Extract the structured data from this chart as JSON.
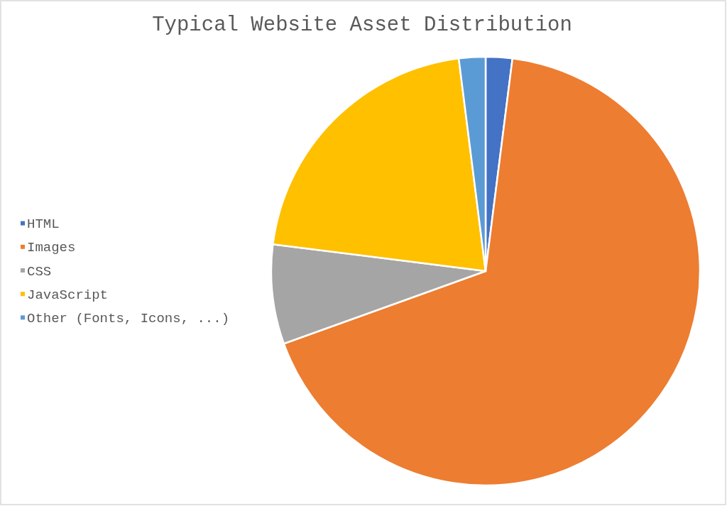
{
  "chart_data": {
    "type": "pie",
    "title": "Typical Website Asset Distribution",
    "categories": [
      "HTML",
      "Images",
      "CSS",
      "JavaScript",
      "Other (Fonts, Icons, ...)"
    ],
    "values": [
      2,
      67.5,
      7.5,
      21,
      2
    ],
    "colors": [
      "#4472c4",
      "#ed7d31",
      "#a5a5a5",
      "#ffc000",
      "#5b9bd5"
    ],
    "legend": "left"
  }
}
